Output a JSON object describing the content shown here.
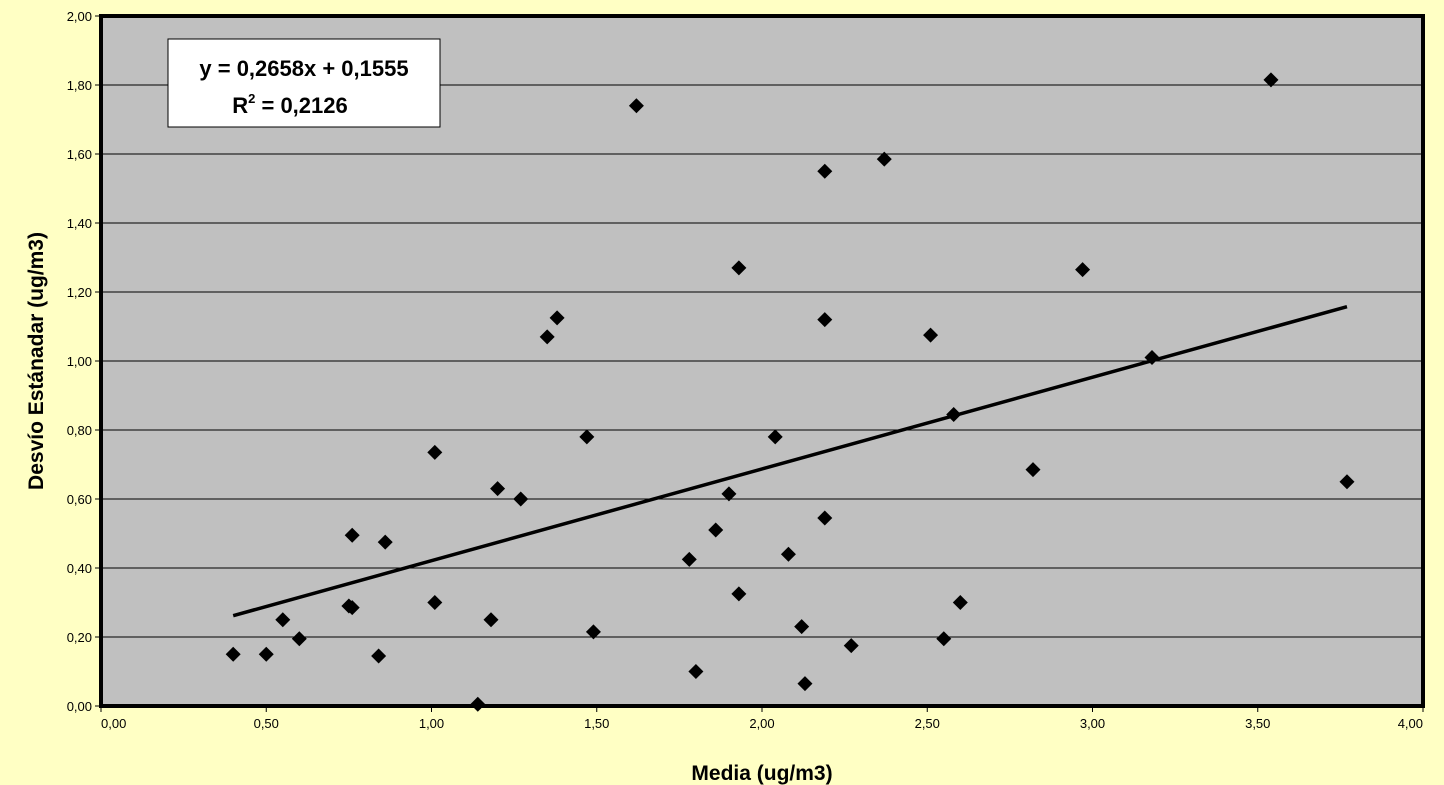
{
  "chart_data": {
    "type": "scatter",
    "xlabel": "Media (ug/m3)",
    "ylabel": "Desvío Estánadar (ug/m3)",
    "xlim": [
      0,
      4
    ],
    "ylim": [
      0,
      2
    ],
    "x_ticks": [
      0,
      0.5,
      1,
      1.5,
      2,
      2.5,
      3,
      3.5,
      4
    ],
    "y_ticks": [
      0,
      0.2,
      0.4,
      0.6,
      0.8,
      1,
      1.2,
      1.4,
      1.6,
      1.8,
      2
    ],
    "x_tick_labels": [
      "0,00",
      "0,50",
      "1,00",
      "1,50",
      "2,00",
      "2,50",
      "3,00",
      "3,50",
      "4,00"
    ],
    "y_tick_labels": [
      "0,00",
      "0,20",
      "0,40",
      "0,60",
      "0,80",
      "1,00",
      "1,20",
      "1,40",
      "1,60",
      "1,80",
      "2,00"
    ],
    "grid": "horizontal",
    "series": [
      {
        "marker": "diamond",
        "points": [
          [
            0.4,
            0.15
          ],
          [
            0.5,
            0.15
          ],
          [
            0.55,
            0.25
          ],
          [
            0.6,
            0.195
          ],
          [
            0.75,
            0.29
          ],
          [
            0.76,
            0.285
          ],
          [
            0.76,
            0.495
          ],
          [
            0.84,
            0.145
          ],
          [
            0.86,
            0.475
          ],
          [
            1.01,
            0.735
          ],
          [
            1.01,
            0.3
          ],
          [
            1.14,
            0.005
          ],
          [
            1.18,
            0.25
          ],
          [
            1.2,
            0.63
          ],
          [
            1.27,
            0.6
          ],
          [
            1.35,
            1.07
          ],
          [
            1.38,
            1.125
          ],
          [
            1.47,
            0.78
          ],
          [
            1.49,
            0.215
          ],
          [
            1.62,
            1.74
          ],
          [
            1.78,
            0.425
          ],
          [
            1.8,
            0.1
          ],
          [
            1.86,
            0.51
          ],
          [
            1.9,
            0.615
          ],
          [
            1.93,
            0.325
          ],
          [
            1.93,
            1.27
          ],
          [
            2.04,
            0.78
          ],
          [
            2.08,
            0.44
          ],
          [
            2.12,
            0.23
          ],
          [
            2.13,
            0.065
          ],
          [
            2.19,
            1.55
          ],
          [
            2.19,
            0.545
          ],
          [
            2.19,
            1.12
          ],
          [
            2.27,
            0.175
          ],
          [
            2.37,
            1.585
          ],
          [
            2.51,
            1.075
          ],
          [
            2.55,
            0.195
          ],
          [
            2.58,
            0.845
          ],
          [
            2.6,
            0.3
          ],
          [
            2.82,
            0.685
          ],
          [
            2.97,
            1.265
          ],
          [
            3.18,
            1.01
          ],
          [
            3.54,
            1.815
          ],
          [
            3.77,
            0.65
          ]
        ]
      }
    ],
    "trendline": {
      "slope": 0.2658,
      "intercept": 0.1555,
      "x_range": [
        0.4,
        3.77
      ]
    },
    "annotation": {
      "equation": "y = 0,2658x + 0,1555",
      "r2_base": "R",
      "r2_sup": "2",
      "r2_value": " = 0,2126",
      "placement": "top-left"
    },
    "colors": {
      "page_background": "#ffffc4",
      "plot_background": "#c0c0c0",
      "grid": "#000000",
      "marker": "#000000",
      "trendline": "#000000",
      "annotation_box": "#ffffff"
    }
  }
}
